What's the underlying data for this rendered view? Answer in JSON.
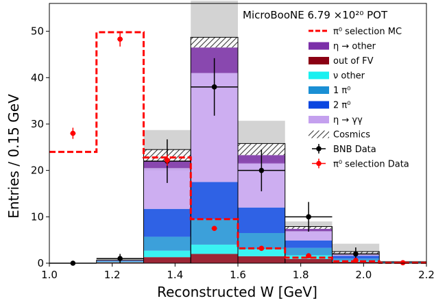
{
  "chart_data": {
    "type": "bar",
    "title": "MicroBooNE 6.79 ×10²⁰ POT",
    "xlabel": "Reconstructed W [GeV]",
    "ylabel": "Entries / 0.15 GeV",
    "xlim": [
      1.0,
      2.2
    ],
    "ylim": [
      0,
      56
    ],
    "xticks": [
      "1.0",
      "1.2",
      "1.4",
      "1.6",
      "1.8",
      "2.0",
      "2.2"
    ],
    "yticks": [
      "0",
      "10",
      "20",
      "30",
      "40",
      "50"
    ],
    "bin_edges": [
      1.0,
      1.15,
      1.3,
      1.45,
      1.6,
      1.75,
      1.9,
      2.05,
      2.2
    ],
    "stack_bins_start": 1,
    "stack_series": [
      {
        "name": "out of FV",
        "color": "#8b0013",
        "values": [
          0.2,
          1.3,
          2.0,
          1.5,
          0.9,
          0.3,
          0.1
        ]
      },
      {
        "name": "ν other",
        "color": "#18f0f0",
        "values": [
          0.1,
          1.4,
          2.0,
          1.5,
          0.8,
          0.2,
          0.0
        ]
      },
      {
        "name": "1 π⁰",
        "color": "#1a8fd4",
        "values": [
          0.1,
          3.0,
          5.5,
          3.5,
          1.6,
          0.5,
          0.1
        ]
      },
      {
        "name": "2 π⁰",
        "color": "#0a46e0",
        "values": [
          0.1,
          6.0,
          8.0,
          5.5,
          1.6,
          0.6,
          0.1
        ]
      },
      {
        "name": "η → γγ",
        "color": "#c4a0ee",
        "values": [
          0.1,
          8.8,
          23.5,
          9.5,
          2.0,
          0.4,
          0.0
        ]
      },
      {
        "name": "η → other",
        "color": "#7b2fa8",
        "values": [
          0.0,
          1.5,
          5.5,
          1.8,
          0.5,
          0.1,
          0.0
        ]
      },
      {
        "name": "Cosmics",
        "color": "#ffffff",
        "hatch": true,
        "values": [
          0.05,
          2.5,
          2.2,
          2.5,
          0.5,
          0.4,
          0.0
        ]
      }
    ],
    "total_mc": [
      0.65,
      24.5,
      48.7,
      25.8,
      7.9,
      2.5,
      0.3
    ],
    "uncertainty_band": [
      [
        0.5,
        0.9
      ],
      [
        20.0,
        28.7
      ],
      [
        41.0,
        56.6
      ],
      [
        21.8,
        30.7
      ],
      [
        6.8,
        9.0
      ],
      [
        2.0,
        4.2
      ],
      [
        0.2,
        0.5
      ]
    ],
    "pi0_selection_mc": [
      24.0,
      49.8,
      22.8,
      9.5,
      3.2,
      1.2,
      0.4,
      0.1
    ],
    "bnb_data": {
      "x": [
        1.075,
        1.225,
        1.375,
        1.525,
        1.675,
        1.825,
        1.975
      ],
      "y": [
        0,
        1,
        22,
        38,
        20,
        10,
        2
      ],
      "yerr": [
        0.3,
        1.0,
        4.7,
        6.2,
        4.5,
        3.2,
        1.4
      ]
    },
    "pi0_selection_data": {
      "x": [
        1.075,
        1.225,
        1.375,
        1.525,
        1.675,
        1.825,
        1.975,
        2.125
      ],
      "y": [
        28,
        48.3,
        22.2,
        7.5,
        3.2,
        1.6,
        0.6,
        0.1
      ],
      "yerr": [
        1.2,
        1.6,
        1.2,
        0.5,
        0.3,
        0.2,
        0.1,
        0.05
      ]
    },
    "legend_position": "top-right",
    "legend": [
      {
        "label": "π⁰ selection MC",
        "kind": "dashed-line",
        "color": "#ff0000"
      },
      {
        "label": "η → other",
        "kind": "patch",
        "color": "#7b2fa8"
      },
      {
        "label": "out of FV",
        "kind": "patch",
        "color": "#8b0013"
      },
      {
        "label": "ν other",
        "kind": "patch",
        "color": "#18f0f0"
      },
      {
        "label": "1 π⁰",
        "kind": "patch",
        "color": "#1a8fd4"
      },
      {
        "label": "2 π⁰",
        "kind": "patch",
        "color": "#0a46e0"
      },
      {
        "label": "η → γγ",
        "kind": "patch",
        "color": "#c4a0ee"
      },
      {
        "label": "Cosmics",
        "kind": "hatch",
        "color": "#ffffff"
      },
      {
        "label": "BNB Data",
        "kind": "marker",
        "color": "#000000"
      },
      {
        "label": "π⁰ selection Data",
        "kind": "marker",
        "color": "#ff0000"
      }
    ],
    "uncertainty_color": "#d3d3d3"
  }
}
